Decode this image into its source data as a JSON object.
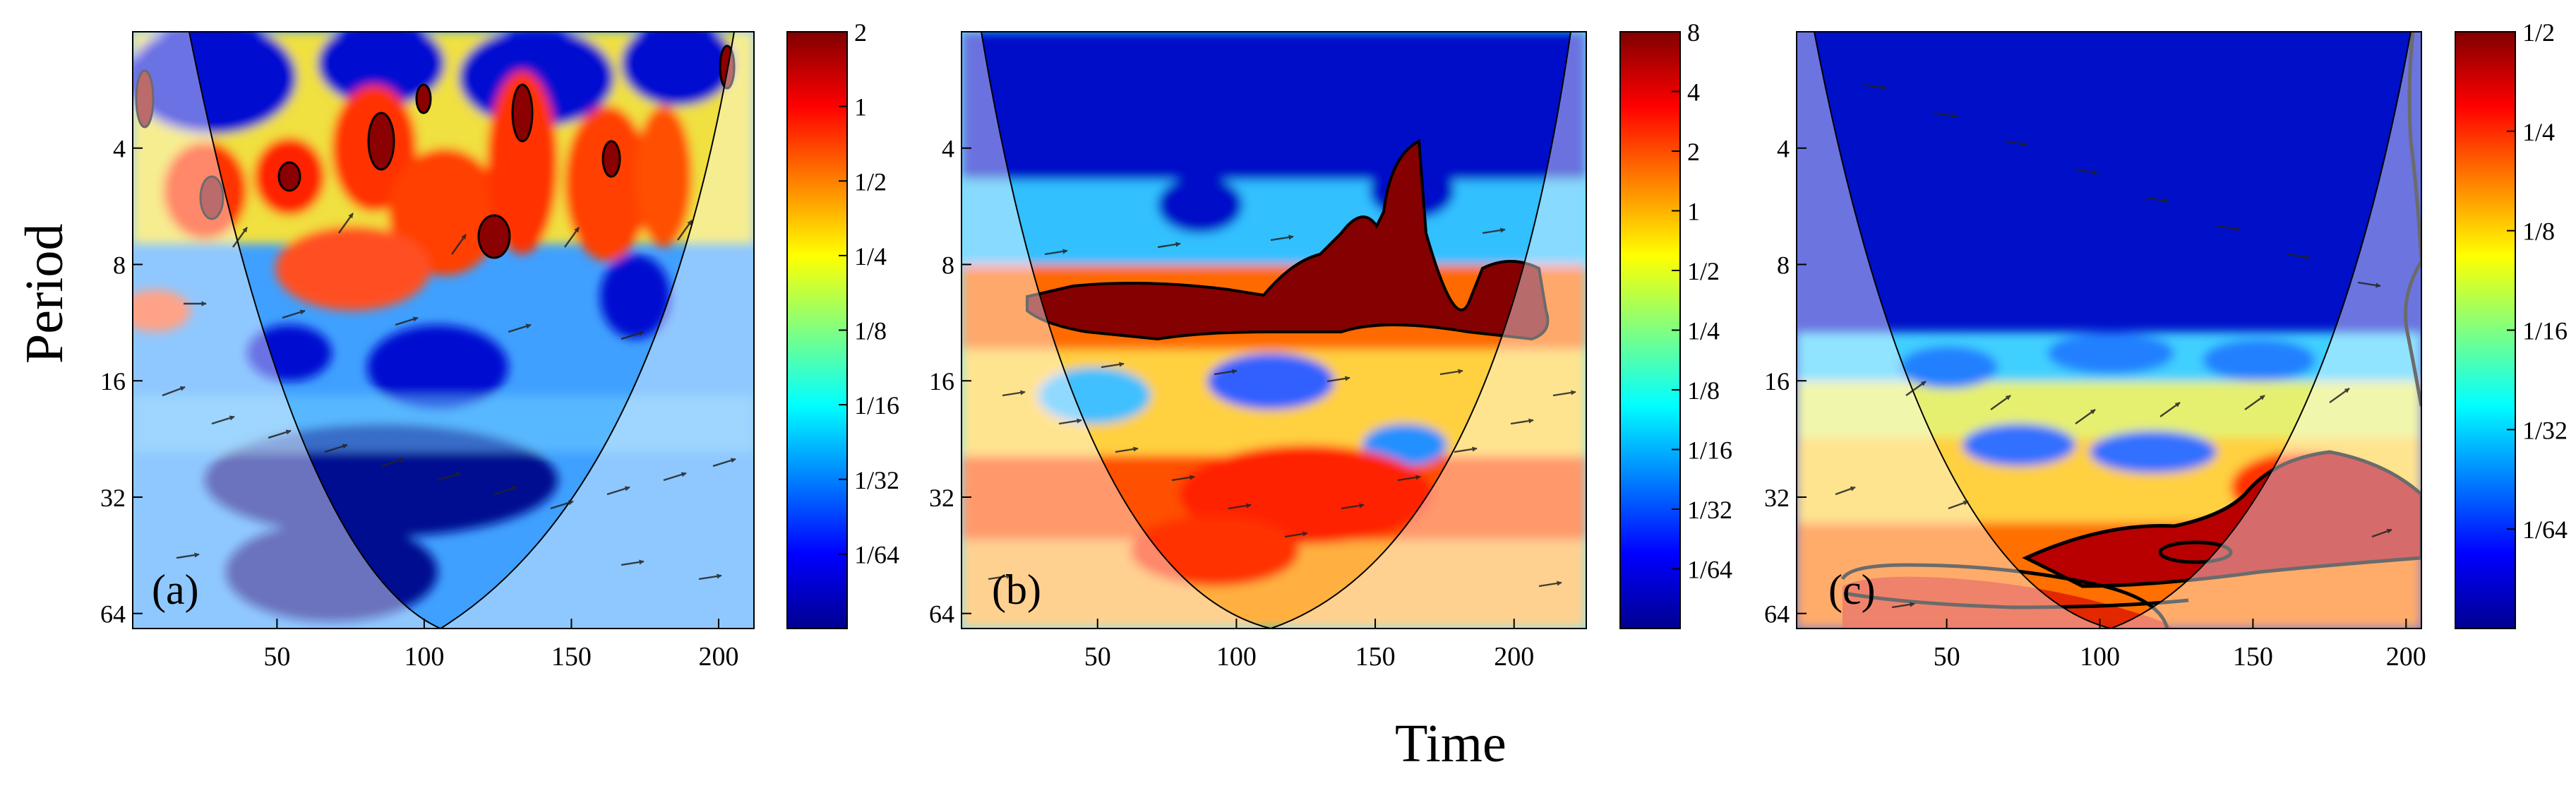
{
  "figure": {
    "xlabel": "Time",
    "ylabel": "Period"
  },
  "chart_data": [
    {
      "type": "heatmap",
      "panel_label": "(a)",
      "x_ticks": [
        50,
        100,
        150,
        200
      ],
      "xlim": [
        1,
        212
      ],
      "y_ticks": [
        "4",
        "8",
        "16",
        "32",
        "64"
      ],
      "y_tick_values": [
        4,
        8,
        16,
        32,
        64
      ],
      "ylim": [
        2,
        70
      ],
      "y_scale": "log2",
      "y_reversed": true,
      "colorbar_ticks": [
        "2",
        "1",
        "1/2",
        "1/4",
        "1/8",
        "1/16",
        "1/32",
        "1/64"
      ],
      "colorbar_values": [
        2,
        1,
        0.5,
        0.25,
        0.125,
        0.0625,
        0.03125,
        0.015625
      ],
      "colorbar_scale": "log2",
      "colorbar_range": [
        0.0078125,
        2
      ]
    },
    {
      "type": "heatmap",
      "panel_label": "(b)",
      "x_ticks": [
        50,
        100,
        150,
        200
      ],
      "xlim": [
        1,
        226
      ],
      "y_ticks": [
        "4",
        "8",
        "16",
        "32",
        "64"
      ],
      "y_tick_values": [
        4,
        8,
        16,
        32,
        64
      ],
      "ylim": [
        2,
        70
      ],
      "y_scale": "log2",
      "y_reversed": true,
      "colorbar_ticks": [
        "8",
        "4",
        "2",
        "1",
        "1/2",
        "1/4",
        "1/8",
        "1/16",
        "1/32",
        "1/64"
      ],
      "colorbar_values": [
        8,
        4,
        2,
        1,
        0.5,
        0.25,
        0.125,
        0.0625,
        0.03125,
        0.015625
      ],
      "colorbar_scale": "log2",
      "colorbar_range": [
        0.0078125,
        8
      ]
    },
    {
      "type": "heatmap",
      "panel_label": "(c)",
      "x_ticks": [
        50,
        100,
        150,
        200
      ],
      "xlim": [
        1,
        205
      ],
      "y_ticks": [
        "4",
        "8",
        "16",
        "32",
        "64"
      ],
      "y_tick_values": [
        4,
        8,
        16,
        32,
        64
      ],
      "ylim": [
        2,
        70
      ],
      "y_scale": "log2",
      "y_reversed": true,
      "colorbar_ticks": [
        "1/2",
        "1/4",
        "1/8",
        "1/16",
        "1/32",
        "1/64"
      ],
      "colorbar_values": [
        0.5,
        0.25,
        0.125,
        0.0625,
        0.03125,
        0.015625
      ],
      "colorbar_scale": "log2",
      "colorbar_range": [
        0.0078125,
        0.5
      ]
    }
  ]
}
